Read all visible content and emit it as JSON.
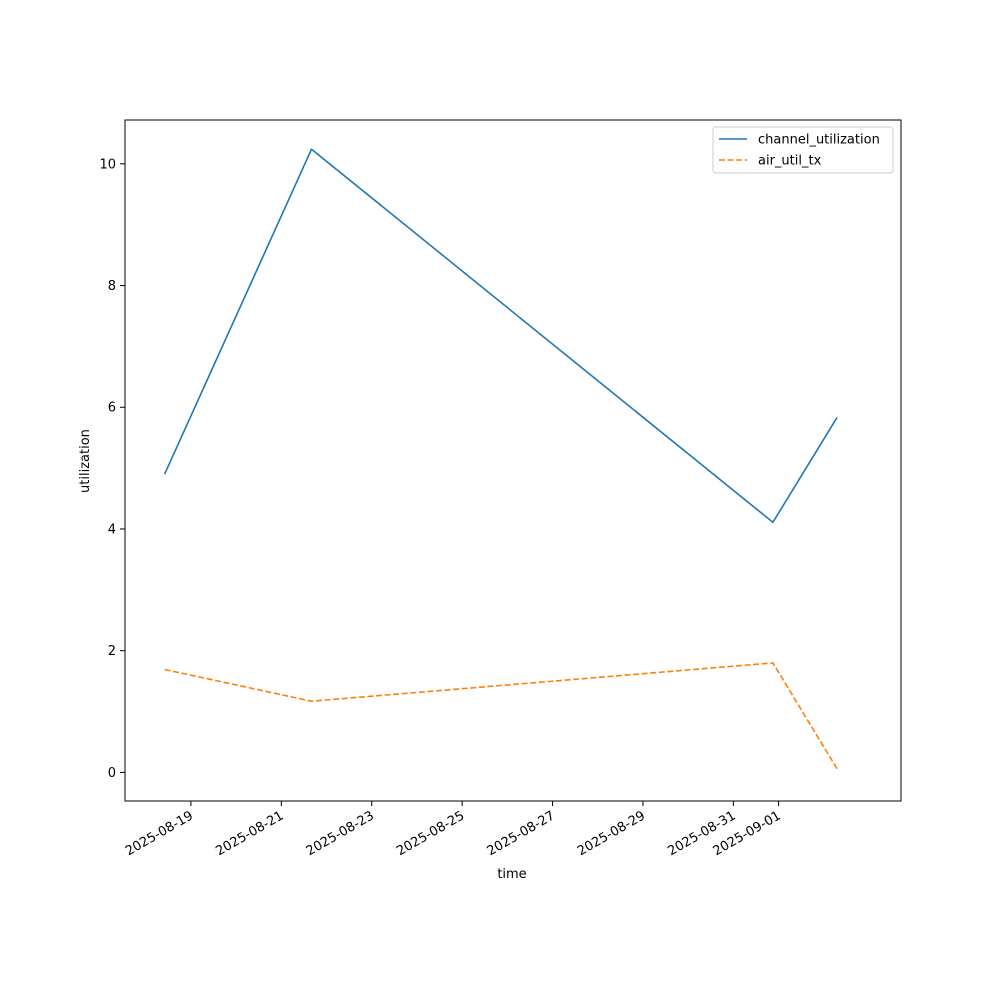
{
  "chart_data": {
    "type": "line",
    "title": "",
    "xlabel": "time",
    "ylabel": "utilization",
    "x_tick_labels": [
      "2025-08-19",
      "2025-08-21",
      "2025-08-23",
      "2025-08-25",
      "2025-08-27",
      "2025-08-29",
      "2025-08-31",
      "2025-09-01"
    ],
    "x_ticks": [
      "2025-08-19",
      "2025-08-21",
      "2025-08-23",
      "2025-08-25",
      "2025-08-27",
      "2025-08-29",
      "2025-08-31",
      "2025-09-01"
    ],
    "y_ticks": [
      0,
      2,
      4,
      6,
      8,
      10
    ],
    "y_tick_labels": [
      "0",
      "2",
      "4",
      "6",
      "8",
      "10"
    ],
    "xlim": [
      "2025-08-17T13:00",
      "2025-09-03T17:00"
    ],
    "ylim": [
      -0.47,
      10.72
    ],
    "grid": false,
    "legend_position": "top-right",
    "x": [
      "2025-08-18T10:00",
      "2025-08-21T16:00",
      "2025-08-31T21:00",
      "2025-09-02T07:00"
    ],
    "series": [
      {
        "name": "channel_utilization",
        "values": [
          4.9,
          10.24,
          4.11,
          5.83
        ],
        "color": "#1f77b4",
        "style": "solid"
      },
      {
        "name": "air_util_tx",
        "values": [
          1.69,
          1.17,
          1.8,
          0.06
        ],
        "color": "#ff7f0e",
        "style": "dashed"
      }
    ]
  }
}
